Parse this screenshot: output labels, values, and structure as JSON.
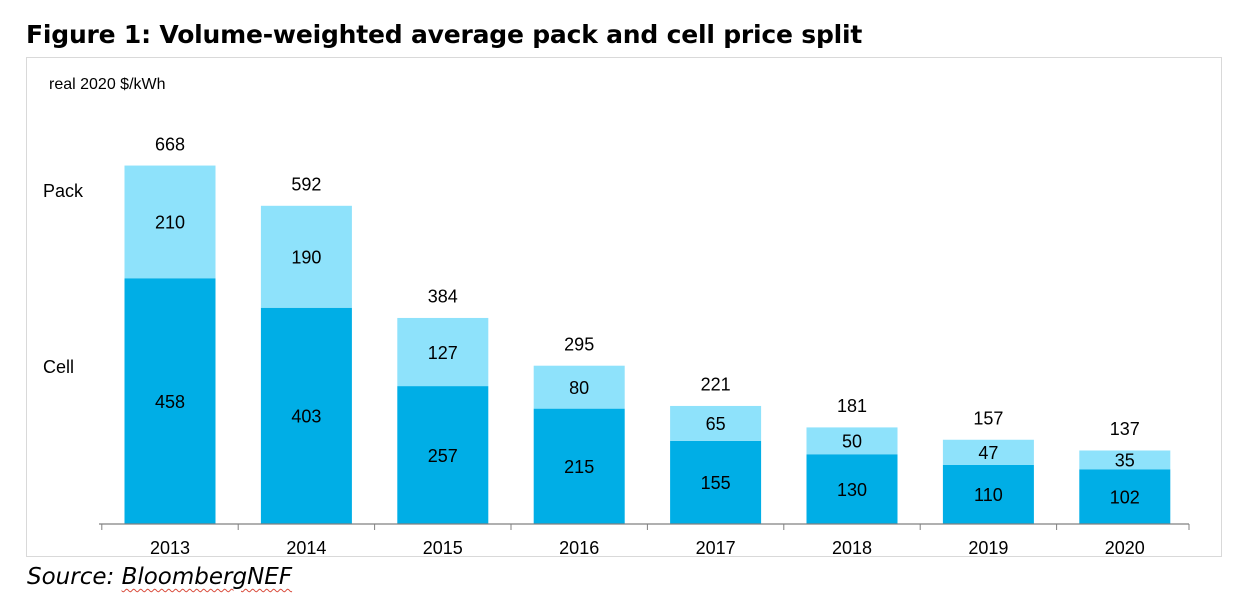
{
  "figure": {
    "title": "Figure 1: Volume-weighted average pack and cell price split",
    "source_prefix": "Source: ",
    "source_brand": "BloombergNEF"
  },
  "chart_data": {
    "type": "bar",
    "stacked": true,
    "title": "Figure 1: Volume-weighted average pack and cell price split",
    "ylabel": "real 2020 $/kWh",
    "xlabel": "",
    "categories": [
      "2013",
      "2014",
      "2015",
      "2016",
      "2017",
      "2018",
      "2019",
      "2020"
    ],
    "series": [
      {
        "name": "Cell",
        "color": "#00aee6",
        "values": [
          458,
          403,
          257,
          215,
          155,
          130,
          110,
          102
        ]
      },
      {
        "name": "Pack",
        "color": "#8ee2fb",
        "values": [
          210,
          190,
          127,
          80,
          65,
          50,
          47,
          35
        ]
      }
    ],
    "totals": [
      668,
      592,
      384,
      295,
      221,
      181,
      157,
      137
    ],
    "ylim": [
      0,
      700
    ],
    "grid": false,
    "legend": "left, inline with first bar"
  }
}
